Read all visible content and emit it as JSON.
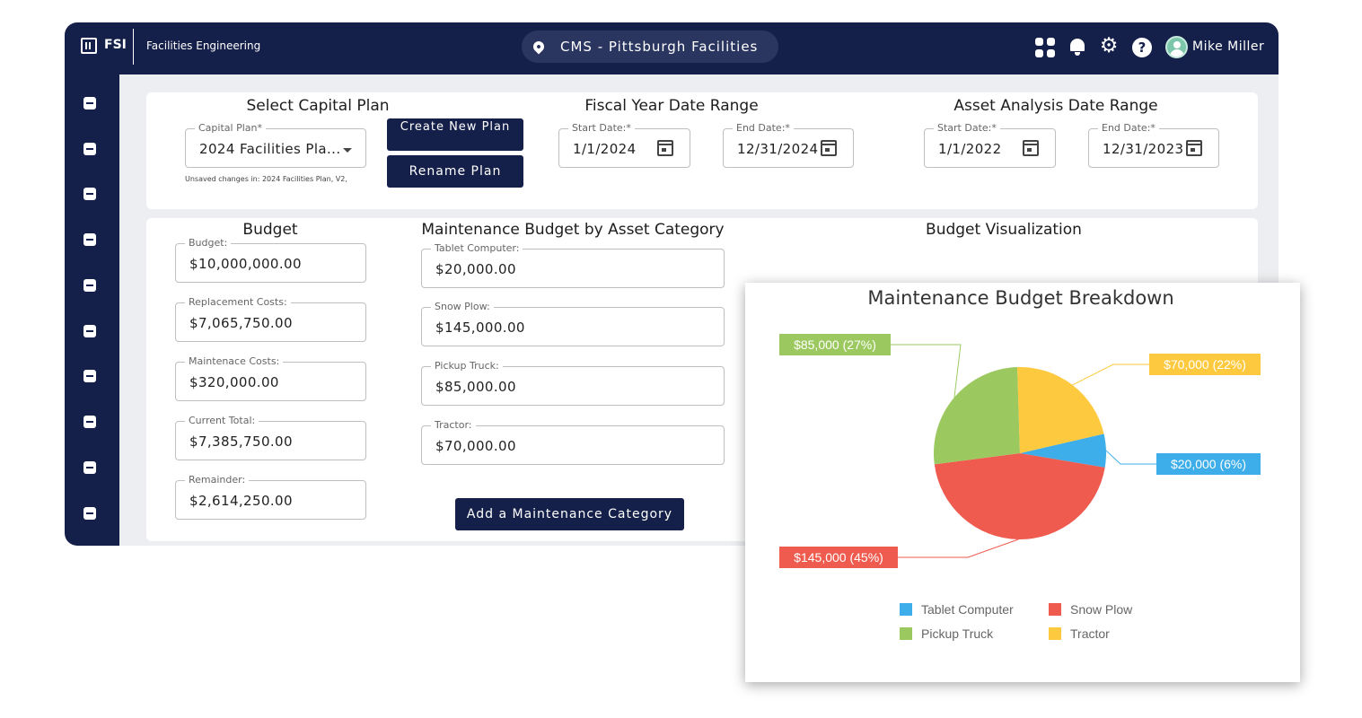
{
  "header": {
    "brand": "FSI",
    "app_title": "Facilities Engineering",
    "location": "CMS - Pittsburgh Facilities",
    "user_name": "Mike Miller"
  },
  "sidebar": {
    "icons": [
      "inbox-icon",
      "assets-icon",
      "notes-icon",
      "calendar-list-icon",
      "edit-document-icon",
      "buildings-icon",
      "office-building-icon",
      "contacts-icon",
      "hierarchy-icon",
      "transfer-icon"
    ]
  },
  "capital_plan": {
    "title": "Select Capital Plan",
    "field_label": "Capital Plan*",
    "value": "2024 Facilities Pla...",
    "hint": "Unsaved changes in: 2024 Facilities Plan, V2,",
    "create_button": "Create New Plan",
    "rename_button": "Rename Plan"
  },
  "fiscal_year": {
    "title": "Fiscal Year Date Range",
    "start_label": "Start Date:*",
    "start_value": "1/1/2024",
    "end_label": "End Date:*",
    "end_value": "12/31/2024"
  },
  "asset_analysis": {
    "title": "Asset Analysis Date Range",
    "start_label": "Start Date:*",
    "start_value": "1/1/2022",
    "end_label": "End Date:*",
    "end_value": "12/31/2023"
  },
  "budget": {
    "title": "Budget",
    "fields": [
      {
        "label": "Budget:",
        "value": "$10,000,000.00"
      },
      {
        "label": "Replacement Costs:",
        "value": "$7,065,750.00"
      },
      {
        "label": "Maintenace Costs:",
        "value": "$320,000.00"
      },
      {
        "label": "Current Total:",
        "value": "$7,385,750.00"
      },
      {
        "label": "Remainder:",
        "value": "$2,614,250.00"
      }
    ]
  },
  "maintenance": {
    "title": "Maintenance Budget by Asset Category",
    "fields": [
      {
        "label": "Tablet Computer:",
        "value": "$20,000.00"
      },
      {
        "label": "Snow Plow:",
        "value": "$145,000.00"
      },
      {
        "label": "Pickup Truck:",
        "value": "$85,000.00"
      },
      {
        "label": "Tractor:",
        "value": "$70,000.00"
      }
    ],
    "add_button": "Add a Maintenance Category"
  },
  "visualization": {
    "title": "Budget Visualization"
  },
  "chart_data": {
    "type": "pie",
    "title": "Maintenance Budget Breakdown",
    "categories": [
      "Tablet Computer",
      "Snow Plow",
      "Pickup Truck",
      "Tractor"
    ],
    "values": [
      20000,
      145000,
      85000,
      70000
    ],
    "labels": [
      "$20,000 (6%)",
      "$145,000 (45%)",
      "$85,000 (27%)",
      "$70,000 (22%)"
    ],
    "colors": [
      "#3daee9",
      "#ef5b4f",
      "#9cc95f",
      "#fdc93f"
    ],
    "legend": "bottom"
  }
}
